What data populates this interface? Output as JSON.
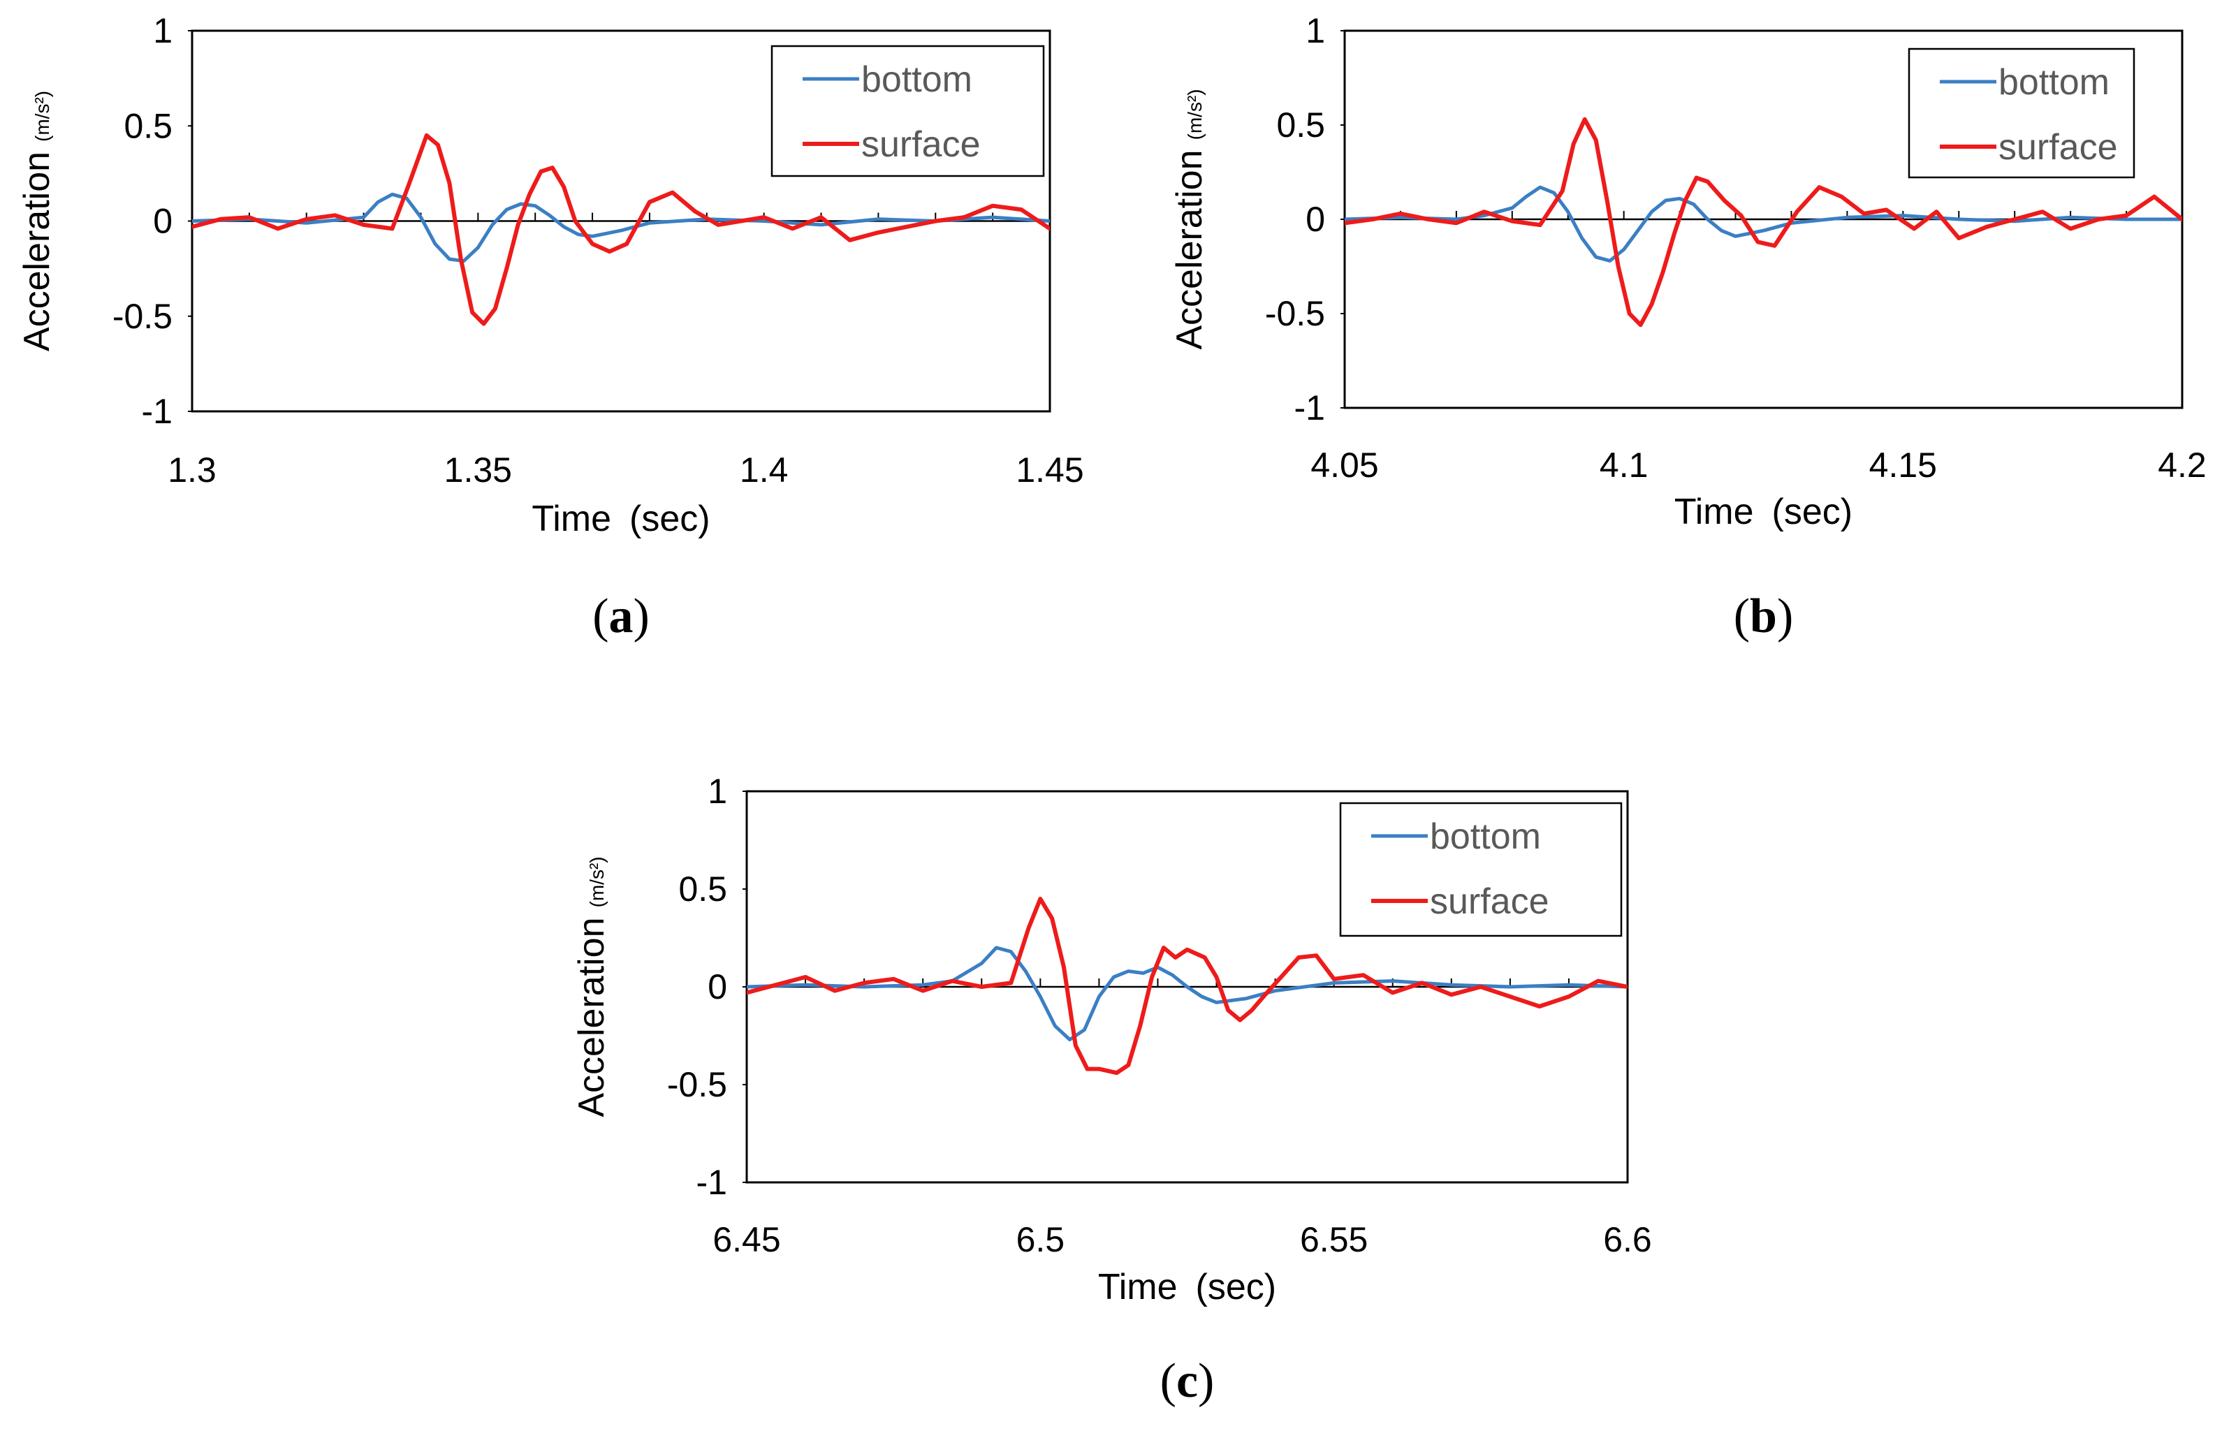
{
  "figure": {
    "colors": {
      "bottom": "#3b7fc4",
      "surface": "#ee1b1b",
      "frame": "#000000",
      "legend_text": "#595959"
    }
  },
  "chart_data": [
    {
      "type": "line",
      "panel_label": "a",
      "xlabel": "Time",
      "xlabel_unit": "(sec)",
      "ylabel": "Acceleration",
      "ylabel_unit": "(m/s²)",
      "xlim": [
        1.3,
        1.45
      ],
      "ylim": [
        -1,
        1
      ],
      "xtick_labels": [
        "1.3",
        "1.35",
        "1.4",
        "1.45"
      ],
      "ytick_labels": [
        "1",
        "0.5",
        "0",
        "-0.5",
        "-1"
      ],
      "legend": [
        "bottom",
        "surface"
      ],
      "legend_position": "top-right",
      "series": [
        {
          "name": "bottom",
          "x": [
            1.3,
            1.31,
            1.32,
            1.33,
            1.3325,
            1.335,
            1.3375,
            1.34,
            1.3425,
            1.345,
            1.3475,
            1.35,
            1.3525,
            1.355,
            1.3575,
            1.36,
            1.3625,
            1.365,
            1.3675,
            1.37,
            1.375,
            1.38,
            1.39,
            1.4,
            1.41,
            1.42,
            1.43,
            1.44,
            1.45
          ],
          "y": [
            0.0,
            0.01,
            -0.01,
            0.02,
            0.1,
            0.14,
            0.12,
            0.02,
            -0.12,
            -0.2,
            -0.21,
            -0.14,
            -0.02,
            0.06,
            0.09,
            0.08,
            0.03,
            -0.03,
            -0.07,
            -0.08,
            -0.05,
            -0.01,
            0.01,
            0.0,
            -0.02,
            0.01,
            0.0,
            0.02,
            0.0
          ]
        },
        {
          "name": "surface",
          "x": [
            1.3,
            1.305,
            1.31,
            1.315,
            1.32,
            1.325,
            1.33,
            1.335,
            1.338,
            1.341,
            1.343,
            1.345,
            1.347,
            1.349,
            1.351,
            1.353,
            1.355,
            1.357,
            1.359,
            1.361,
            1.363,
            1.365,
            1.367,
            1.37,
            1.373,
            1.376,
            1.38,
            1.384,
            1.388,
            1.392,
            1.396,
            1.4,
            1.405,
            1.41,
            1.415,
            1.42,
            1.425,
            1.43,
            1.435,
            1.44,
            1.445,
            1.45
          ],
          "y": [
            -0.03,
            0.01,
            0.02,
            -0.04,
            0.01,
            0.03,
            -0.02,
            -0.04,
            0.2,
            0.45,
            0.4,
            0.2,
            -0.2,
            -0.48,
            -0.54,
            -0.46,
            -0.25,
            -0.02,
            0.14,
            0.26,
            0.28,
            0.18,
            0.0,
            -0.12,
            -0.16,
            -0.12,
            0.1,
            0.15,
            0.05,
            -0.02,
            0.0,
            0.02,
            -0.04,
            0.02,
            -0.1,
            -0.06,
            -0.03,
            0.0,
            0.02,
            0.08,
            0.06,
            -0.04
          ]
        }
      ]
    },
    {
      "type": "line",
      "panel_label": "b",
      "xlabel": "Time",
      "xlabel_unit": "(sec)",
      "ylabel": "Acceleration",
      "ylabel_unit": "(m/s²)",
      "xlim": [
        4.05,
        4.2
      ],
      "ylim": [
        -1,
        1
      ],
      "xtick_labels": [
        "4.05",
        "4.1",
        "4.15",
        "4.2"
      ],
      "ytick_labels": [
        "1",
        "0.5",
        "0",
        "-0.5",
        "-1"
      ],
      "legend": [
        "bottom",
        "surface"
      ],
      "legend_position": "top-right",
      "series": [
        {
          "name": "bottom",
          "x": [
            4.05,
            4.06,
            4.07,
            4.075,
            4.08,
            4.0825,
            4.085,
            4.0875,
            4.09,
            4.0925,
            4.095,
            4.0975,
            4.1,
            4.1025,
            4.105,
            4.1075,
            4.11,
            4.1125,
            4.115,
            4.1175,
            4.12,
            4.125,
            4.13,
            4.14,
            4.15,
            4.16,
            4.17,
            4.18,
            4.19,
            4.2
          ],
          "y": [
            0.0,
            0.01,
            0.0,
            0.02,
            0.06,
            0.12,
            0.17,
            0.14,
            0.04,
            -0.1,
            -0.2,
            -0.22,
            -0.16,
            -0.06,
            0.04,
            0.1,
            0.11,
            0.08,
            0.0,
            -0.06,
            -0.09,
            -0.06,
            -0.02,
            0.01,
            0.02,
            0.0,
            -0.01,
            0.01,
            0.0,
            0.0
          ]
        },
        {
          "name": "surface",
          "x": [
            4.05,
            4.055,
            4.06,
            4.065,
            4.07,
            4.075,
            4.08,
            4.085,
            4.089,
            4.091,
            4.093,
            4.095,
            4.097,
            4.099,
            4.101,
            4.103,
            4.105,
            4.107,
            4.109,
            4.111,
            4.113,
            4.115,
            4.118,
            4.121,
            4.124,
            4.127,
            4.131,
            4.135,
            4.139,
            4.143,
            4.147,
            4.152,
            4.156,
            4.16,
            4.165,
            4.17,
            4.175,
            4.18,
            4.185,
            4.19,
            4.195,
            4.2
          ],
          "y": [
            -0.02,
            0.0,
            0.03,
            0.0,
            -0.02,
            0.04,
            -0.01,
            -0.03,
            0.15,
            0.4,
            0.53,
            0.42,
            0.1,
            -0.25,
            -0.5,
            -0.56,
            -0.45,
            -0.28,
            -0.08,
            0.1,
            0.22,
            0.2,
            0.1,
            0.02,
            -0.12,
            -0.14,
            0.04,
            0.17,
            0.12,
            0.03,
            0.05,
            -0.05,
            0.04,
            -0.1,
            -0.04,
            0.0,
            0.04,
            -0.05,
            0.0,
            0.02,
            0.12,
            0.0
          ]
        }
      ]
    },
    {
      "type": "line",
      "panel_label": "c",
      "xlabel": "Time",
      "xlabel_unit": "(sec)",
      "ylabel": "Acceleration",
      "ylabel_unit": "(m/s²)",
      "xlim": [
        6.45,
        6.6
      ],
      "ylim": [
        -1,
        1
      ],
      "xtick_labels": [
        "6.45",
        "6.5",
        "6.55",
        "6.6"
      ],
      "ytick_labels": [
        "1",
        "0.5",
        "0",
        "-0.5",
        "-1"
      ],
      "legend": [
        "bottom",
        "surface"
      ],
      "legend_position": "top-right",
      "series": [
        {
          "name": "bottom",
          "x": [
            6.45,
            6.46,
            6.47,
            6.48,
            6.485,
            6.49,
            6.4925,
            6.495,
            6.4975,
            6.5,
            6.5025,
            6.505,
            6.5075,
            6.51,
            6.5125,
            6.515,
            6.5175,
            6.52,
            6.5225,
            6.525,
            6.5275,
            6.53,
            6.535,
            6.54,
            6.55,
            6.56,
            6.57,
            6.58,
            6.59,
            6.6
          ],
          "y": [
            0.0,
            0.01,
            0.0,
            0.01,
            0.03,
            0.12,
            0.2,
            0.18,
            0.08,
            -0.05,
            -0.2,
            -0.27,
            -0.22,
            -0.05,
            0.05,
            0.08,
            0.07,
            0.1,
            0.06,
            0.0,
            -0.05,
            -0.08,
            -0.06,
            -0.02,
            0.02,
            0.03,
            0.01,
            0.0,
            0.01,
            0.0
          ]
        },
        {
          "name": "surface",
          "x": [
            6.45,
            6.455,
            6.46,
            6.465,
            6.47,
            6.475,
            6.48,
            6.485,
            6.49,
            6.495,
            6.498,
            6.5,
            6.502,
            6.504,
            6.506,
            6.508,
            6.51,
            6.513,
            6.515,
            6.517,
            6.519,
            6.521,
            6.523,
            6.525,
            6.528,
            6.53,
            6.532,
            6.534,
            6.536,
            6.538,
            6.541,
            6.544,
            6.547,
            6.55,
            6.555,
            6.56,
            6.565,
            6.57,
            6.575,
            6.58,
            6.585,
            6.59,
            6.595,
            6.6
          ],
          "y": [
            -0.03,
            0.01,
            0.05,
            -0.02,
            0.02,
            0.04,
            -0.02,
            0.03,
            0.0,
            0.02,
            0.3,
            0.45,
            0.35,
            0.1,
            -0.3,
            -0.42,
            -0.42,
            -0.44,
            -0.4,
            -0.2,
            0.05,
            0.2,
            0.15,
            0.19,
            0.15,
            0.05,
            -0.12,
            -0.17,
            -0.12,
            -0.05,
            0.05,
            0.15,
            0.16,
            0.04,
            0.06,
            -0.03,
            0.02,
            -0.04,
            0.0,
            -0.05,
            -0.1,
            -0.05,
            0.03,
            0.0
          ]
        }
      ]
    }
  ]
}
